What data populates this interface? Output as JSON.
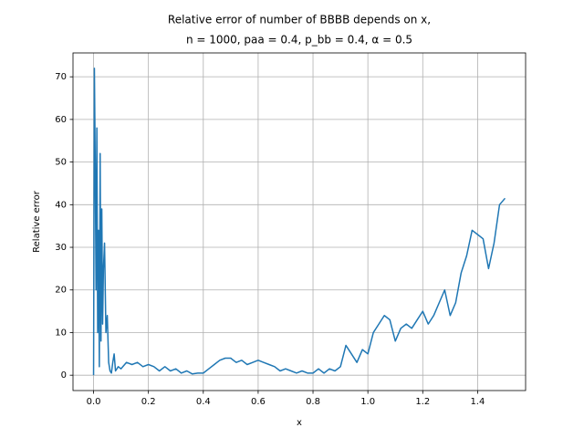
{
  "chart_data": {
    "type": "line",
    "title": [
      "Relative error of number of BBBB depends on x,",
      "n = 1000, paa = 0.4, p_bb = 0.4, α = 0.5"
    ],
    "x_label": "x",
    "y_label": "Relative error",
    "x": [
      0.0,
      0.003,
      0.006,
      0.009,
      0.012,
      0.015,
      0.018,
      0.021,
      0.024,
      0.027,
      0.03,
      0.033,
      0.036,
      0.04,
      0.045,
      0.05,
      0.055,
      0.06,
      0.065,
      0.07,
      0.075,
      0.08,
      0.09,
      0.1,
      0.12,
      0.14,
      0.16,
      0.18,
      0.2,
      0.22,
      0.24,
      0.26,
      0.28,
      0.3,
      0.32,
      0.34,
      0.36,
      0.38,
      0.4,
      0.42,
      0.44,
      0.46,
      0.48,
      0.5,
      0.52,
      0.54,
      0.56,
      0.58,
      0.6,
      0.62,
      0.64,
      0.66,
      0.68,
      0.7,
      0.72,
      0.74,
      0.76,
      0.78,
      0.8,
      0.82,
      0.84,
      0.86,
      0.88,
      0.9,
      0.92,
      0.94,
      0.96,
      0.98,
      1.0,
      1.02,
      1.04,
      1.06,
      1.08,
      1.1,
      1.12,
      1.14,
      1.16,
      1.18,
      1.2,
      1.22,
      1.24,
      1.26,
      1.28,
      1.3,
      1.32,
      1.34,
      1.36,
      1.38,
      1.4,
      1.42,
      1.44,
      1.46,
      1.48,
      1.5
    ],
    "series": [
      {
        "color": "#1f77b4",
        "values": [
          0,
          72,
          50,
          20,
          58,
          10,
          34,
          2,
          52,
          8,
          39,
          12,
          25,
          31,
          10,
          14,
          3,
          1,
          0.5,
          3,
          5,
          1,
          2,
          1.5,
          3,
          2.5,
          3,
          2,
          2.5,
          2,
          1,
          2,
          1,
          1.5,
          0.5,
          1,
          0.3,
          0.5,
          0.5,
          1.5,
          2.5,
          3.5,
          4,
          4,
          3,
          3.5,
          2.5,
          3,
          3.5,
          3,
          2.5,
          2,
          1,
          1.5,
          1,
          0.5,
          1,
          0.5,
          0.5,
          1.5,
          0.5,
          1.5,
          1,
          2,
          7,
          5,
          3,
          6,
          5,
          10,
          12,
          14,
          13,
          8,
          11,
          12,
          11,
          13,
          15,
          12,
          14,
          17,
          20,
          14,
          17,
          24,
          28,
          34,
          33,
          32,
          25,
          31,
          40,
          41.5
        ]
      }
    ],
    "xlim": [
      -0.075,
      1.575
    ],
    "xticks": [
      {
        "value": 0,
        "label": "0.0"
      },
      0.2,
      0.4,
      0.6,
      0.8,
      {
        "value": 1,
        "label": "1.0"
      },
      1.2,
      1.4
    ],
    "ylim": [
      -3.6,
      75.6
    ],
    "yticks": [
      0,
      10,
      20,
      30,
      40,
      50,
      60,
      70
    ],
    "grid": true
  }
}
